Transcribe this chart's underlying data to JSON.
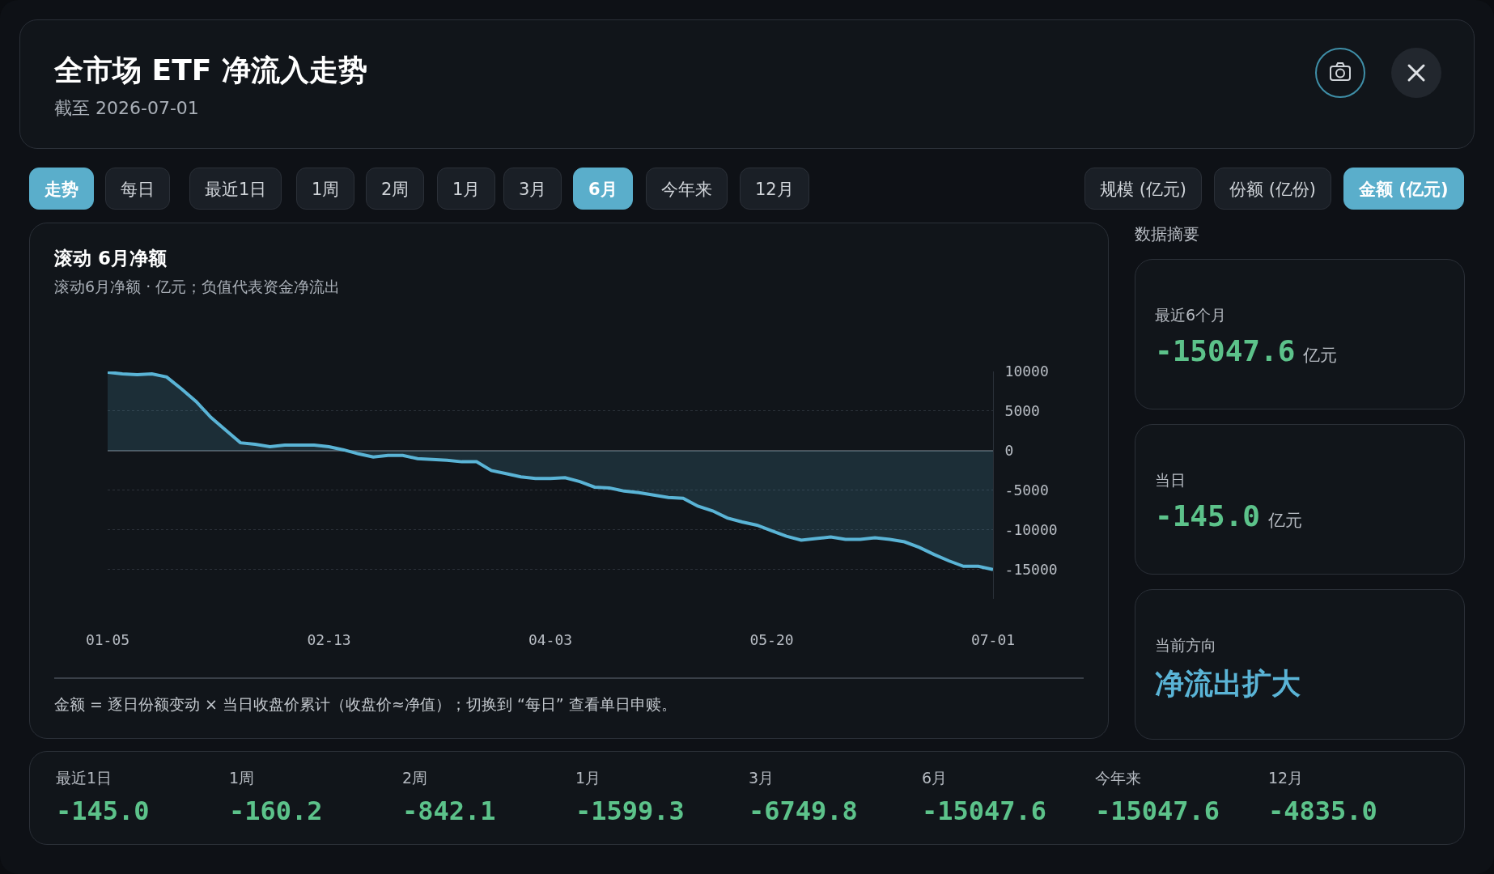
{
  "chart_data": [
    {
      "type": "other",
      "title": "全市场 ETF 净流入走势",
      "subtitle": "截至 2026-07-01",
      "annotations": [
        "走势",
        "每日",
        "最近1日",
        "1周",
        "2周",
        "1月",
        "3月",
        "6月",
        "今年来",
        "12月",
        "规模 (亿元)",
        "份额 (亿份)",
        "金额 (亿元)"
      ]
    },
    {
      "type": "area",
      "title": "滚动 6月净额",
      "subtitle": "滚动6月净额 · 亿元；负值代表资金净流出",
      "color": "#5ab4d6",
      "grid": "y",
      "ylim": [
        -18700,
        10000
      ],
      "yticks": [
        -15000,
        -10000,
        -5000,
        0,
        5000,
        10000
      ],
      "categories": [
        "01-05",
        null,
        null,
        null,
        null,
        null,
        null,
        null,
        null,
        null,
        null,
        null,
        null,
        null,
        null,
        "02-13",
        null,
        null,
        null,
        null,
        null,
        null,
        null,
        null,
        null,
        null,
        null,
        null,
        null,
        null,
        "04-03",
        null,
        null,
        null,
        null,
        null,
        null,
        null,
        null,
        null,
        null,
        null,
        null,
        null,
        null,
        "05-20",
        null,
        null,
        null,
        null,
        null,
        null,
        null,
        null,
        null,
        null,
        null,
        null,
        null,
        null,
        "07-01"
      ],
      "values": [
        9900,
        9700,
        9600,
        9700,
        9300,
        7800,
        6200,
        4200,
        2600,
        1000,
        800,
        500,
        700,
        700,
        700,
        500,
        100,
        -400,
        -800,
        -600,
        -600,
        -1000,
        -1100,
        -1200,
        -1400,
        -1400,
        -2500,
        -2900,
        -3300,
        -3500,
        -3500,
        -3400,
        -3900,
        -4600,
        -4700,
        -5100,
        -5300,
        -5600,
        -5900,
        -6000,
        -7000,
        -7600,
        -8500,
        -9000,
        -9400,
        -10100,
        -10800,
        -11300,
        -11100,
        -10900,
        -11200,
        -11200,
        -11000,
        -11200,
        -11500,
        -12200,
        -13100,
        -13900,
        -14600,
        -14600,
        -15000
      ],
      "annotations": [
        "金额 = 逐日份额变动 × 当日收盘价累计（收盘价≈净值）；切换到 “每日” 查看单日申赎。"
      ]
    },
    {
      "type": "other",
      "title": "数据摘要",
      "annotations": [
        "最近6个月",
        "-15047.6",
        "亿元",
        "当日",
        "-145.0",
        "亿元",
        "当前方向",
        "净流出扩大"
      ]
    },
    {
      "type": "other",
      "annotations": [
        "最近1日",
        "-145.0",
        "1周",
        "-160.2",
        "2周",
        "-842.1",
        "1月",
        "-1599.3",
        "3月",
        "-6749.8",
        "6月",
        "-15047.6",
        "今年来",
        "-15047.6",
        "12月",
        "-4835.0"
      ]
    }
  ]
}
